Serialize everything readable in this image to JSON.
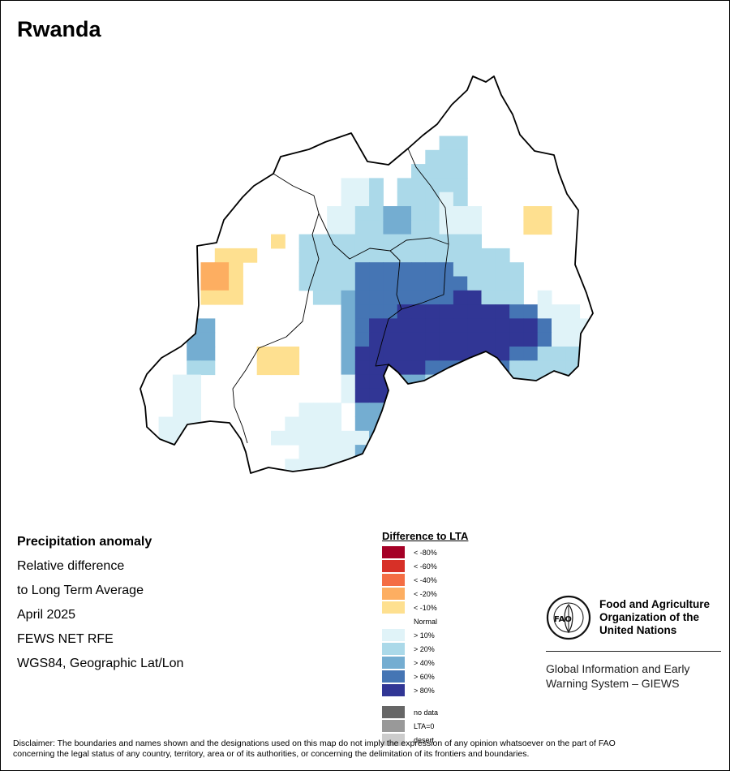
{
  "title": "Rwanda",
  "info": {
    "heading": "Precipitation anomaly",
    "line1": "Relative difference",
    "line2": "to Long Term Average",
    "period": "April 2025",
    "source": "FEWS NET RFE",
    "projection": "WGS84, Geographic Lat/Lon"
  },
  "legend": {
    "title": "Difference to LTA",
    "items": [
      {
        "label": "< -80%",
        "color": "#a50026"
      },
      {
        "label": "< -60%",
        "color": "#d73027"
      },
      {
        "label": "< -40%",
        "color": "#f46d43"
      },
      {
        "label": "< -20%",
        "color": "#fdae61"
      },
      {
        "label": "< -10%",
        "color": "#fee090"
      },
      {
        "label": "Normal",
        "color": "#ffffff"
      },
      {
        "label": "> 10%",
        "color": "#e0f3f8"
      },
      {
        "label": "> 20%",
        "color": "#abd9e9"
      },
      {
        "label": "> 40%",
        "color": "#74add1"
      },
      {
        "label": "> 60%",
        "color": "#4575b4"
      },
      {
        "label": "> 80%",
        "color": "#313695"
      }
    ],
    "extra": [
      {
        "label": "no data",
        "color": "#666666"
      },
      {
        "label": "LTA=0",
        "color": "#999999"
      },
      {
        "label": "desert",
        "color": "#cccccc"
      }
    ]
  },
  "org": {
    "name_line1": "Food and Agriculture",
    "name_line2": "Organization of the",
    "name_line3": "United Nations",
    "system_line1": "Global Information and Early",
    "system_line2": "Warning System – GIEWS",
    "logo_text": "FAO",
    "logo_motto": "FIAT PANIS"
  },
  "disclaimer_line1": "Disclaimer: The boundaries and names shown and the designations used on this map do not imply the expression of any opinion whatsoever on the part of FAO",
  "disclaimer_line2": "concerning the legal status of any country, territory, area or of its authorities, or concerning the delimitation of its frontiers and boundaries."
}
